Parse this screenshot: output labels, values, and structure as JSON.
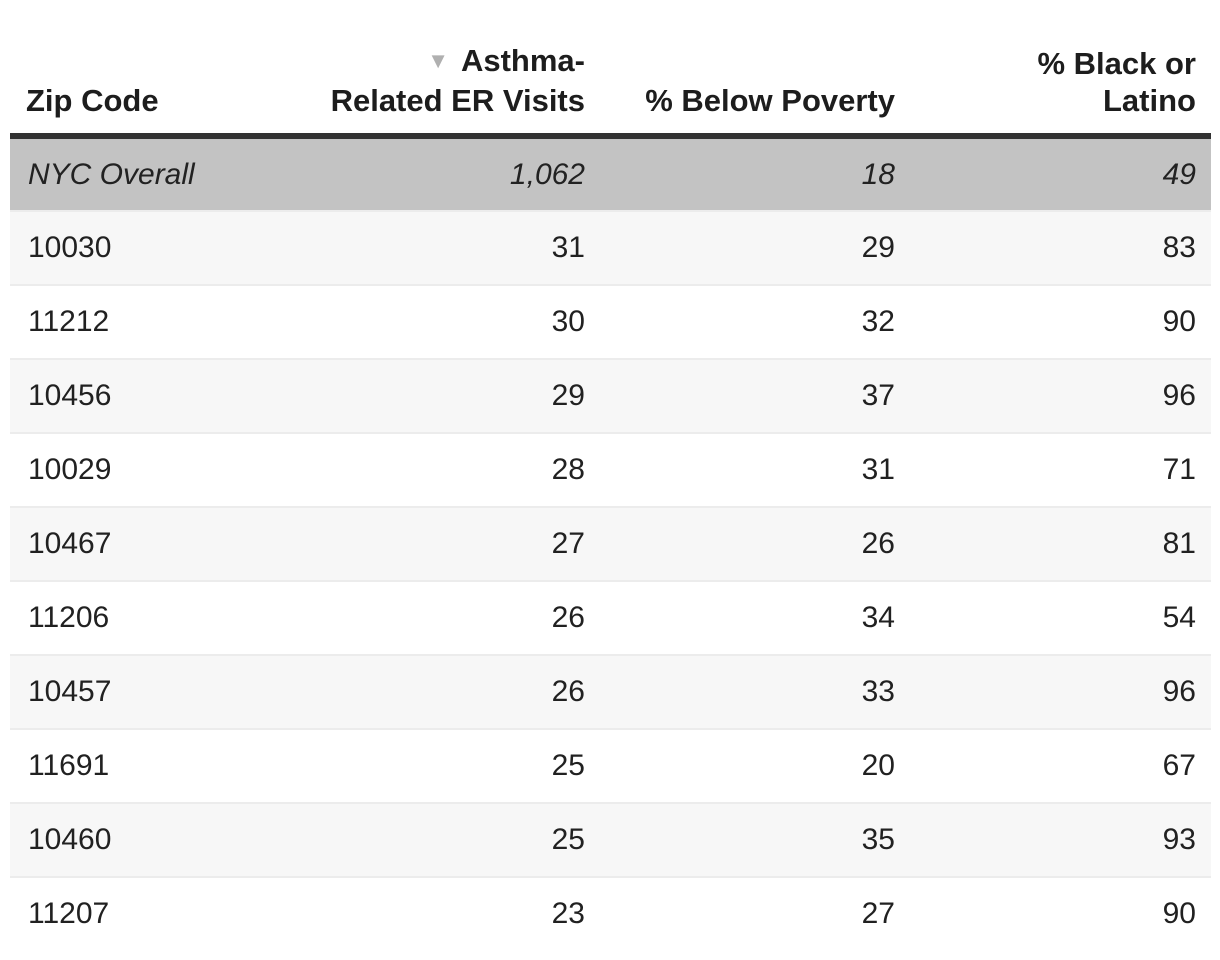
{
  "colors": {
    "header_text": "#1d1d1d",
    "header_rule": "#323232",
    "body_text": "#212121",
    "summary_row_bg": "#c3c3c3",
    "row_alt_bg": "#f7f7f7",
    "row_bg": "#ffffff",
    "row_divider": "#ececec",
    "sort_icon": "#b0b0b0"
  },
  "header": {
    "col1": "Zip Code",
    "col2_line1": "Asthma-",
    "col2_line2": "Related ER Visits",
    "col3": "% Below Poverty",
    "col4_line1": "% Black or",
    "col4_line2": "Latino",
    "sort_indicator": "▼"
  },
  "chart_data": {
    "type": "table",
    "columns": [
      "Zip Code",
      "Asthma-Related ER Visits",
      "% Below Poverty",
      "% Black or Latino"
    ],
    "sorted_by": "Asthma-Related ER Visits",
    "sort_direction": "descending",
    "summary_row": [
      "NYC Overall",
      "1,062",
      "18",
      "49"
    ],
    "rows": [
      [
        "10030",
        "31",
        "29",
        "83"
      ],
      [
        "11212",
        "30",
        "32",
        "90"
      ],
      [
        "10456",
        "29",
        "37",
        "96"
      ],
      [
        "10029",
        "28",
        "31",
        "71"
      ],
      [
        "10467",
        "27",
        "26",
        "81"
      ],
      [
        "11206",
        "26",
        "34",
        "54"
      ],
      [
        "10457",
        "26",
        "33",
        "96"
      ],
      [
        "11691",
        "25",
        "20",
        "67"
      ],
      [
        "10460",
        "25",
        "35",
        "93"
      ],
      [
        "11207",
        "23",
        "27",
        "90"
      ]
    ]
  }
}
